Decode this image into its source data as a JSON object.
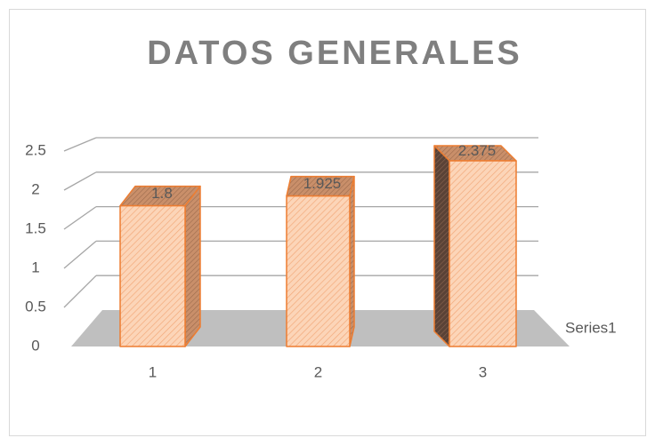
{
  "chart_data": {
    "type": "bar3d",
    "title": "DATOS GENERALES",
    "categories": [
      "1",
      "2",
      "3"
    ],
    "series": [
      {
        "name": "Series1",
        "color": "#ed7d31",
        "values": [
          1.8,
          1.925,
          2.375
        ]
      }
    ],
    "ylim": [
      0,
      2.5
    ],
    "yticks": [
      0,
      0.5,
      1,
      1.5,
      2,
      2.5
    ],
    "grid": true
  }
}
